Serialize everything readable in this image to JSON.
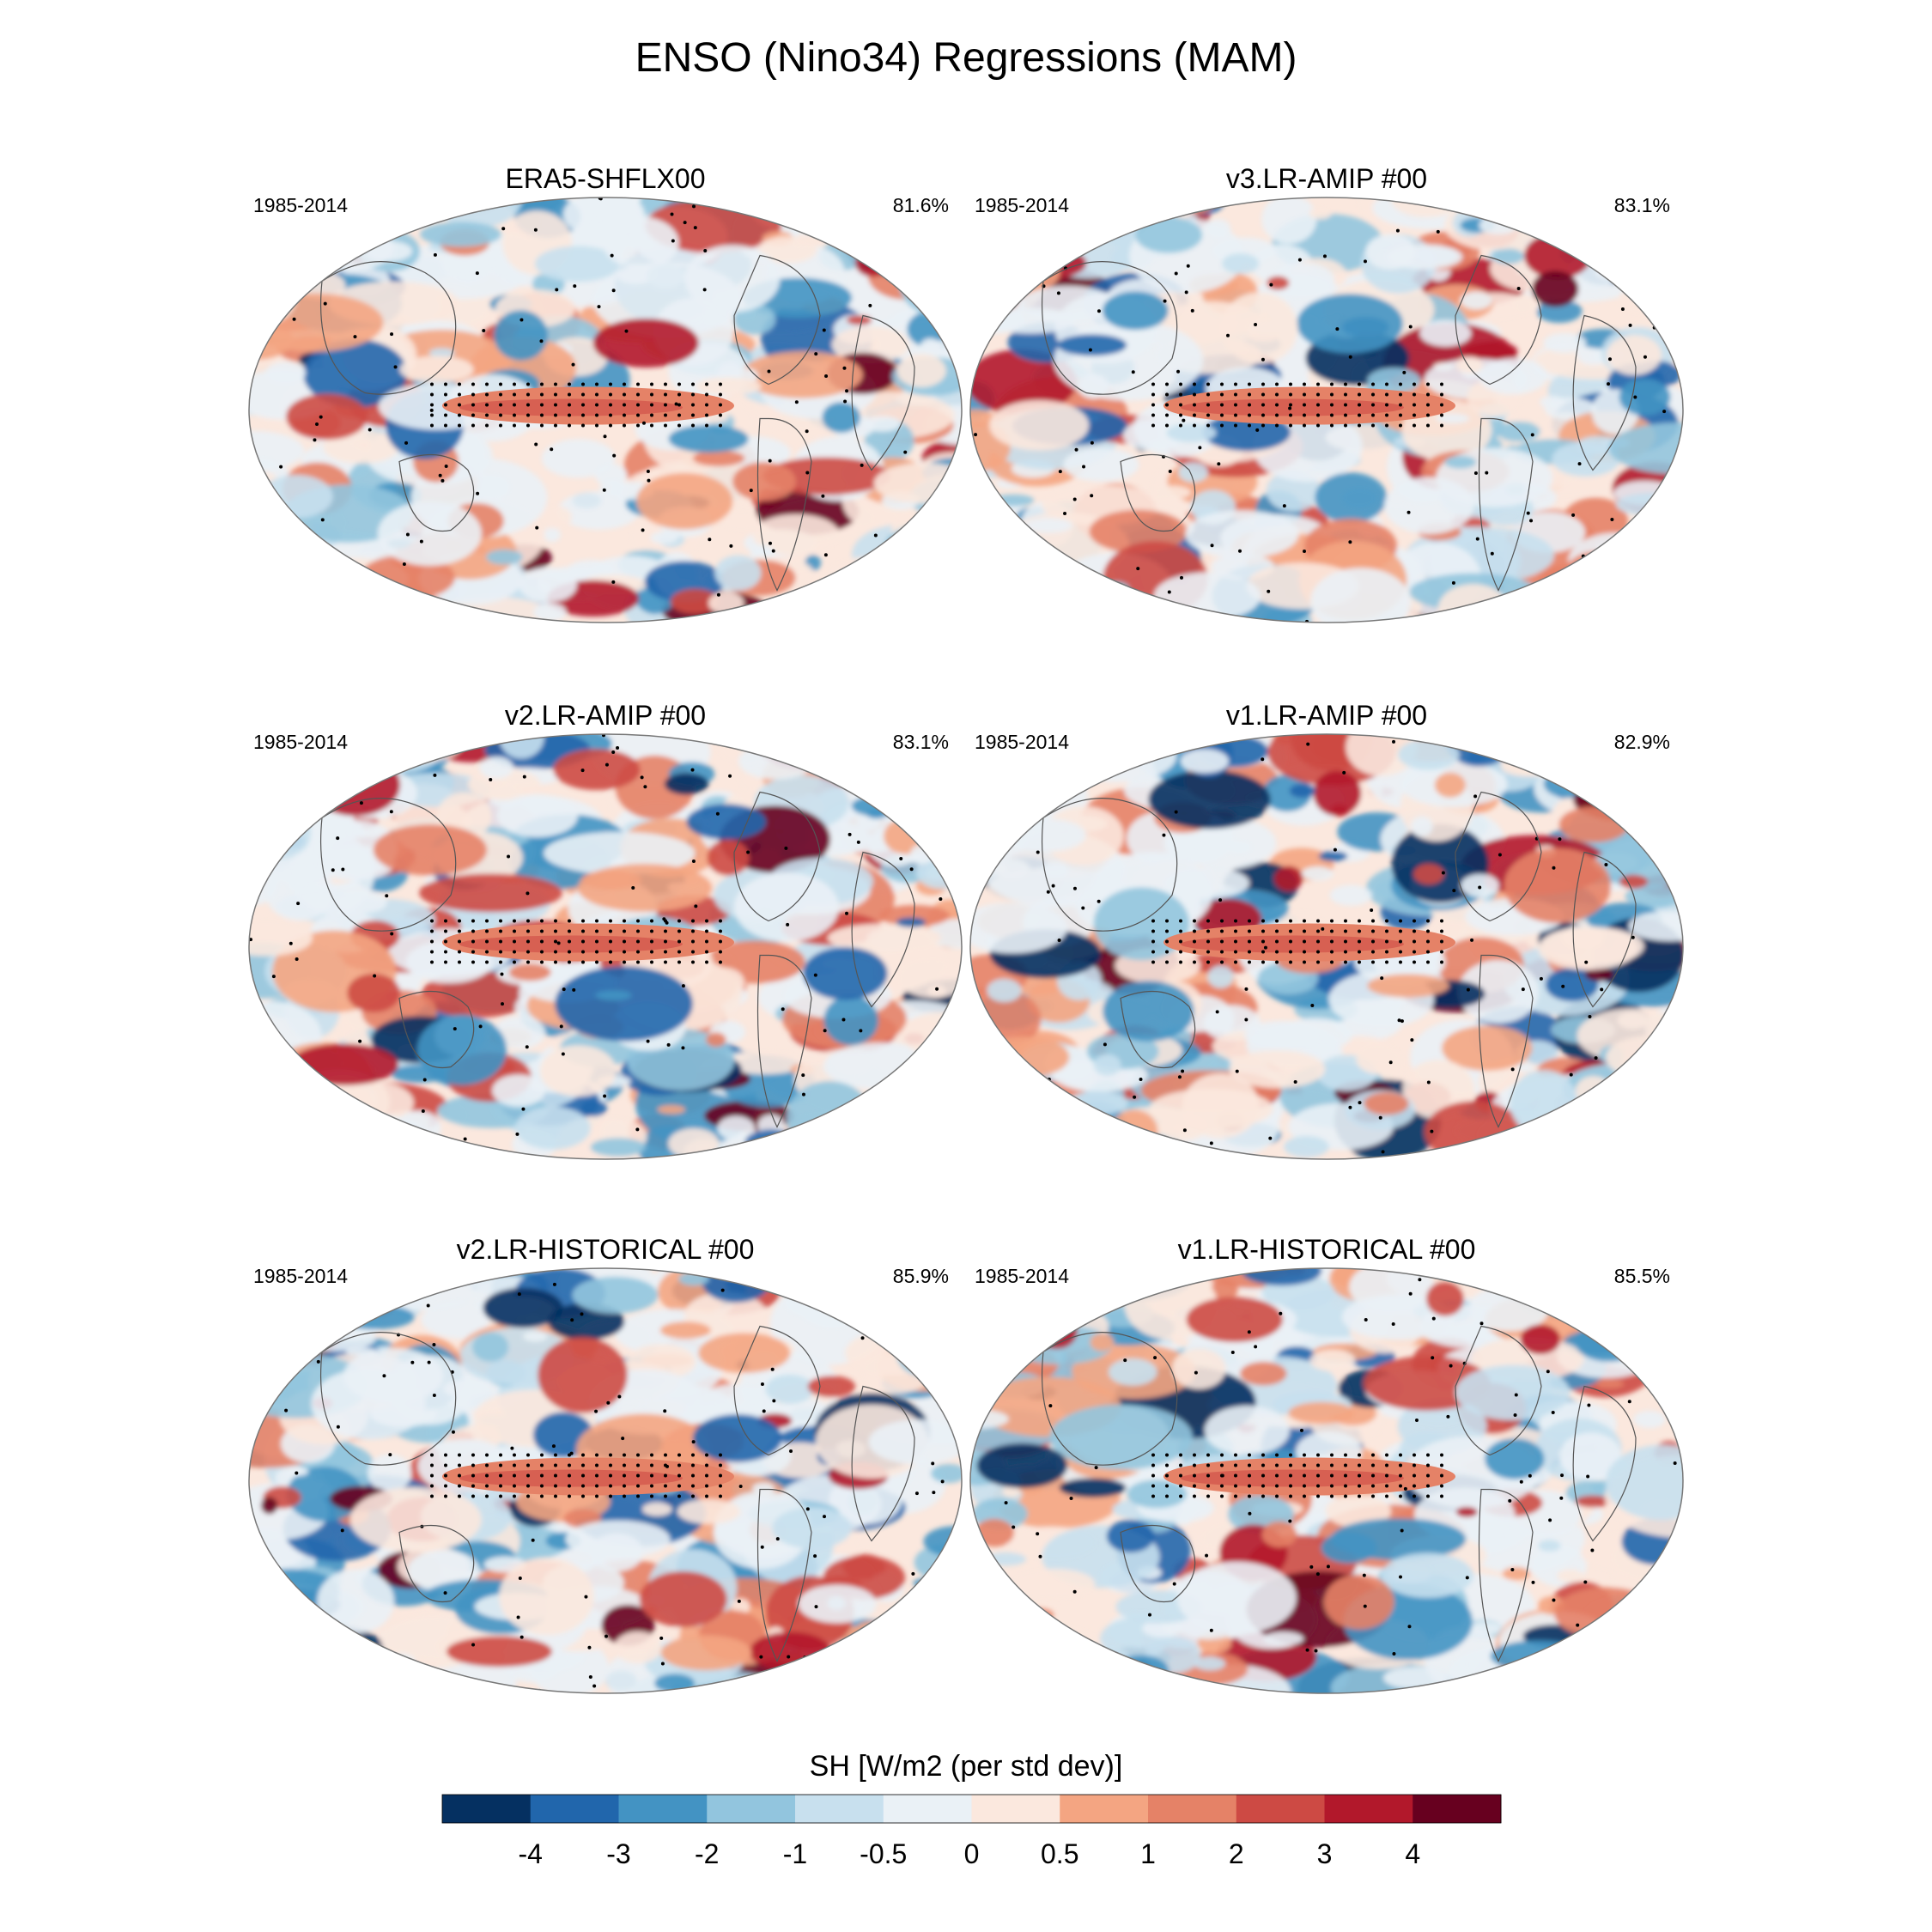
{
  "main_title": "ENSO (Nino34) Regressions (MAM)",
  "colorbar": {
    "title": "SH [W/m2 (per std dev)]",
    "tick_labels": [
      "-4",
      "-3",
      "-2",
      "-1",
      "-0.5",
      "0",
      "0.5",
      "1",
      "2",
      "3",
      "4"
    ],
    "colors": [
      "#053061",
      "#2166ac",
      "#4393c3",
      "#92c5de",
      "#c8e0ee",
      "#eaf1f6",
      "#fbe8de",
      "#f4a582",
      "#e58267",
      "#cd4a44",
      "#b2182b",
      "#67001f"
    ]
  },
  "chart_data": [
    {
      "type": "heatmap",
      "title": "ERA5-SHFLX00",
      "period": "1985-2014",
      "pattern_score": "81.6%"
    },
    {
      "type": "heatmap",
      "title": "v3.LR-AMIP  #00",
      "period": "1985-2014",
      "pattern_score": "83.1%"
    },
    {
      "type": "heatmap",
      "title": "v2.LR-AMIP  #00",
      "period": "1985-2014",
      "pattern_score": "83.1%"
    },
    {
      "type": "heatmap",
      "title": "v1.LR-AMIP  #00",
      "period": "1985-2014",
      "pattern_score": "82.9%"
    },
    {
      "type": "heatmap",
      "title": "v2.LR-HISTORICAL  #00",
      "period": "1985-2014",
      "pattern_score": "85.9%"
    },
    {
      "type": "heatmap",
      "title": "v1.LR-HISTORICAL  #00",
      "period": "1985-2014",
      "pattern_score": "85.5%"
    }
  ]
}
